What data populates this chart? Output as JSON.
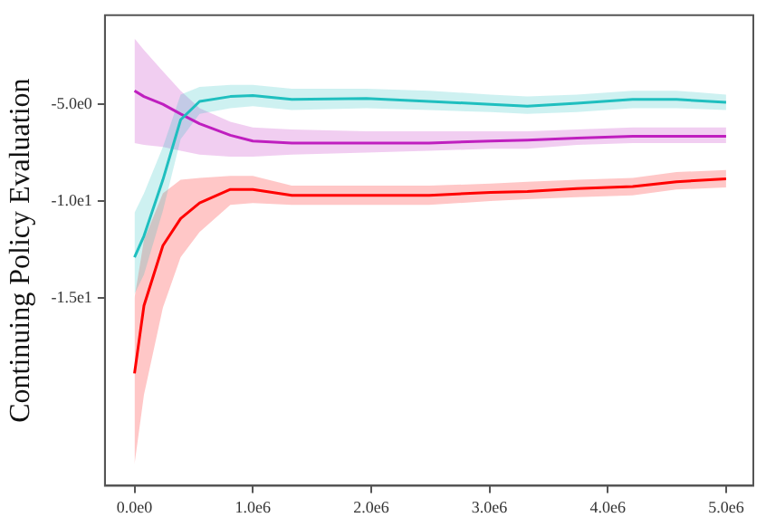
{
  "chart_data": {
    "type": "line",
    "ylabel": "Continuing Policy Evaluation",
    "grid": false,
    "legend": false,
    "marker": "none",
    "line_style": "solid",
    "x": [
      0,
      80000,
      240000,
      390000,
      550000,
      810000,
      1000000,
      1330000,
      1960000,
      2490000,
      3010000,
      3320000,
      3740000,
      4210000,
      4580000,
      5000000
    ],
    "xlim": [
      -250000,
      5230000
    ],
    "ylim": [
      -24.7,
      -0.4
    ],
    "xticks": [
      {
        "value": 0,
        "label": "0.0e0"
      },
      {
        "value": 1000000,
        "label": "1.0e6"
      },
      {
        "value": 2000000,
        "label": "2.0e6"
      },
      {
        "value": 3000000,
        "label": "3.0e6"
      },
      {
        "value": 4000000,
        "label": "4.0e6"
      },
      {
        "value": 5000000,
        "label": "5.0e6"
      }
    ],
    "yticks": [
      {
        "value": -5,
        "label": "-5.0e0"
      },
      {
        "value": -10,
        "label": "-1.0e1"
      },
      {
        "value": -15,
        "label": "-1.5e1"
      }
    ],
    "series": [
      {
        "color": "#1fbfbf",
        "values": [
          -12.9,
          -11.8,
          -8.9,
          -5.8,
          -4.85,
          -4.6,
          -4.55,
          -4.75,
          -4.7,
          -4.85,
          -5.0,
          -5.1,
          -4.95,
          -4.75,
          -4.75,
          -4.9
        ],
        "upper": [
          -10.6,
          -9.6,
          -7.2,
          -4.5,
          -4.1,
          -4.0,
          -4.0,
          -4.2,
          -4.2,
          -4.3,
          -4.5,
          -4.6,
          -4.5,
          -4.3,
          -4.3,
          -4.5
        ],
        "lower": [
          -14.8,
          -13.8,
          -10.5,
          -6.8,
          -5.5,
          -5.2,
          -5.1,
          -5.3,
          -5.2,
          -5.3,
          -5.4,
          -5.5,
          -5.4,
          -5.2,
          -5.2,
          -5.3
        ]
      },
      {
        "color": "#bf1fbf",
        "values": [
          -4.3,
          -4.6,
          -5.0,
          -5.5,
          -6.0,
          -6.6,
          -6.9,
          -7.0,
          -7.0,
          -7.0,
          -6.9,
          -6.85,
          -6.75,
          -6.65,
          -6.65,
          -6.65
        ],
        "upper": [
          -1.6,
          -2.2,
          -3.3,
          -4.3,
          -5.2,
          -5.9,
          -6.2,
          -6.3,
          -6.4,
          -6.4,
          -6.4,
          -6.4,
          -6.3,
          -6.2,
          -6.2,
          -6.2
        ],
        "lower": [
          -7.0,
          -7.1,
          -7.2,
          -7.4,
          -7.6,
          -7.7,
          -7.7,
          -7.6,
          -7.5,
          -7.4,
          -7.3,
          -7.3,
          -7.1,
          -7.0,
          -7.0,
          -7.0
        ]
      },
      {
        "color": "#ff0000",
        "values": [
          -18.9,
          -15.4,
          -12.3,
          -10.9,
          -10.1,
          -9.4,
          -9.4,
          -9.7,
          -9.7,
          -9.7,
          -9.55,
          -9.5,
          -9.35,
          -9.25,
          -9.0,
          -8.85
        ],
        "upper": [
          -15.0,
          -12.0,
          -9.6,
          -8.9,
          -8.8,
          -8.7,
          -8.7,
          -9.2,
          -9.2,
          -9.2,
          -9.1,
          -9.0,
          -8.9,
          -8.8,
          -8.5,
          -8.4
        ],
        "lower": [
          -23.6,
          -20.0,
          -15.5,
          -12.9,
          -11.6,
          -10.2,
          -10.1,
          -10.2,
          -10.2,
          -10.2,
          -10.0,
          -9.9,
          -9.8,
          -9.7,
          -9.4,
          -9.3
        ]
      }
    ]
  }
}
